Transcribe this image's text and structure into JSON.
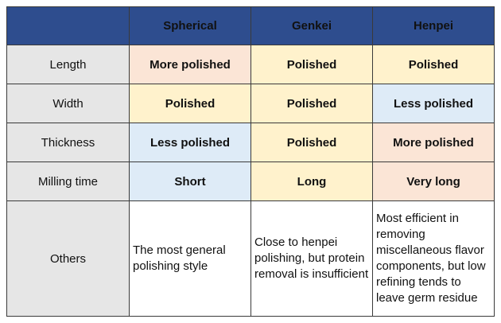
{
  "table": {
    "columns": [
      "Spherical",
      "Genkei",
      "Henpei"
    ],
    "rows": [
      {
        "label": "Length",
        "cells": [
          "More polished",
          "Polished",
          "Polished"
        ],
        "tones": [
          "more",
          "polished",
          "polished"
        ]
      },
      {
        "label": "Width",
        "cells": [
          "Polished",
          "Polished",
          "Less polished"
        ],
        "tones": [
          "polished",
          "polished",
          "less"
        ]
      },
      {
        "label": "Thickness",
        "cells": [
          "Less polished",
          "Polished",
          "More polished"
        ],
        "tones": [
          "less",
          "polished",
          "more"
        ]
      },
      {
        "label": "Milling time",
        "cells": [
          "Short",
          "Long",
          "Very long"
        ],
        "tones": [
          "less",
          "polished",
          "more"
        ]
      }
    ],
    "others": {
      "label": "Others",
      "cells": [
        "The most general polishing style",
        "Close to henpei polishing, but protein removal is insufficient",
        "Most efficient in removing miscellaneous flavor components, but low refining tends to leave germ residue"
      ]
    }
  },
  "colors": {
    "header_bg": "#2e4d8e",
    "row_label_bg": "#e6e6e6",
    "more_polished_bg": "#fbe5d6",
    "polished_bg": "#fff2cc",
    "less_polished_bg": "#deebf7",
    "border": "#3a3a3a"
  }
}
